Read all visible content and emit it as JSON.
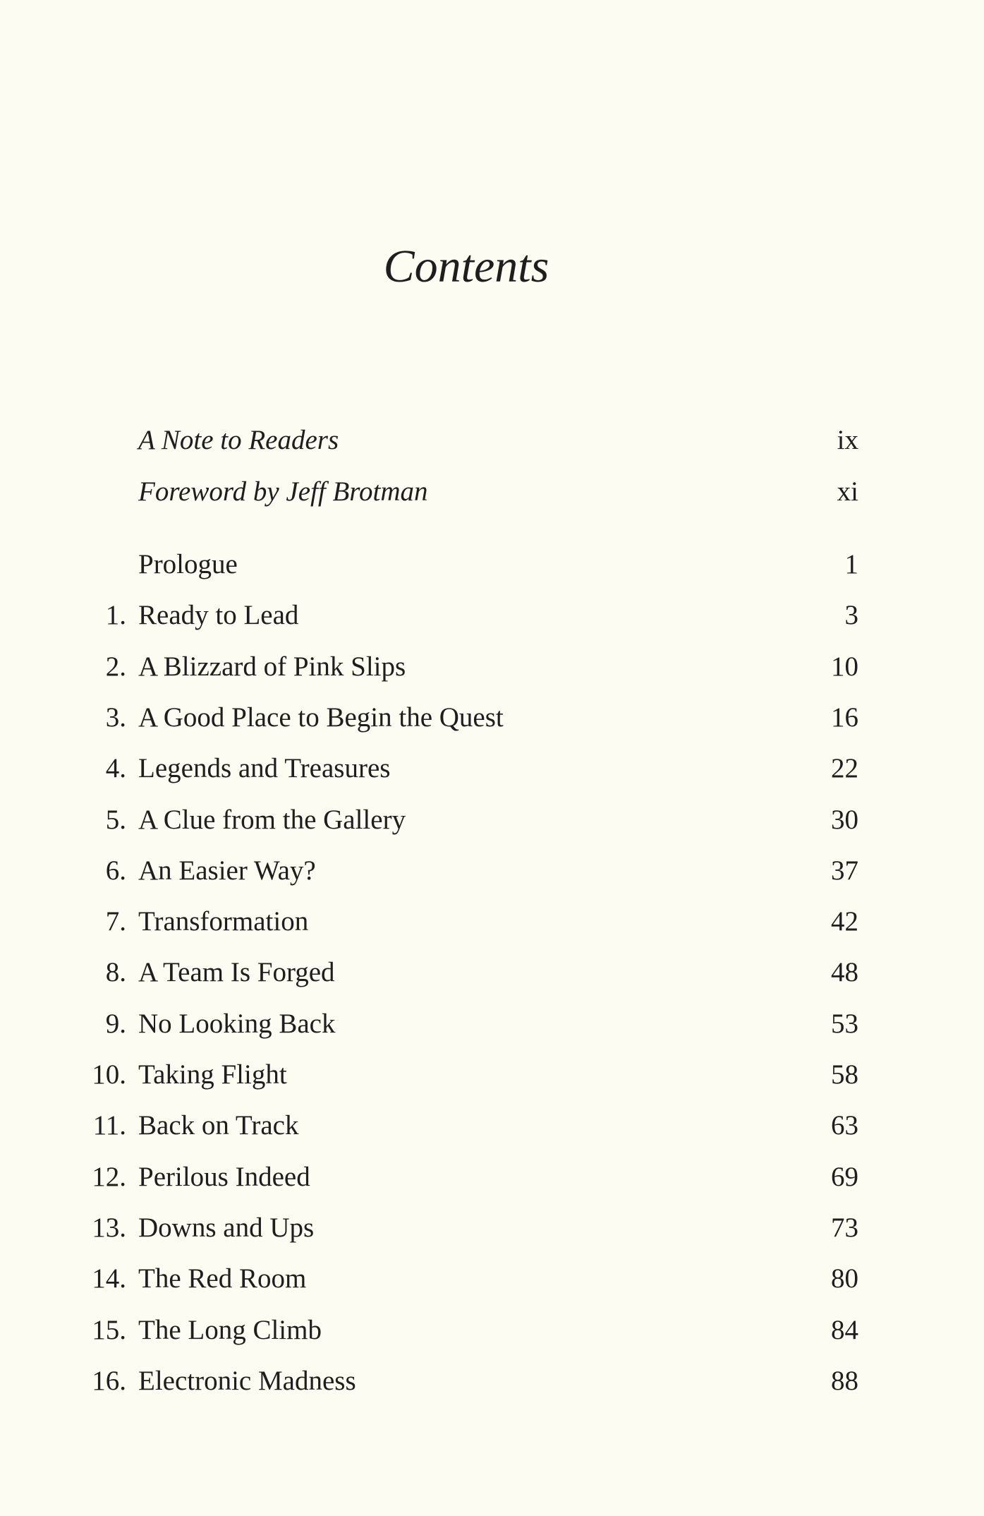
{
  "title": "Contents",
  "front_matter": [
    {
      "label": "A Note to Readers",
      "page": "ix"
    },
    {
      "label": "Foreword by Jeff Brotman",
      "page": "xi"
    }
  ],
  "entries": [
    {
      "number": "",
      "label": "Prologue",
      "page": "1"
    },
    {
      "number": "1.",
      "label": "Ready to Lead",
      "page": "3"
    },
    {
      "number": "2.",
      "label": "A Blizzard of Pink Slips",
      "page": "10"
    },
    {
      "number": "3.",
      "label": "A Good Place to Begin the Quest",
      "page": "16"
    },
    {
      "number": "4.",
      "label": "Legends and Treasures",
      "page": "22"
    },
    {
      "number": "5.",
      "label": "A Clue from the Gallery",
      "page": "30"
    },
    {
      "number": "6.",
      "label": "An Easier Way?",
      "page": "37"
    },
    {
      "number": "7.",
      "label": "Transformation",
      "page": "42"
    },
    {
      "number": "8.",
      "label": "A Team Is Forged",
      "page": "48"
    },
    {
      "number": "9.",
      "label": "No Looking Back",
      "page": "53"
    },
    {
      "number": "10.",
      "label": "Taking Flight",
      "page": "58"
    },
    {
      "number": "11.",
      "label": "Back on Track",
      "page": "63"
    },
    {
      "number": "12.",
      "label": "Perilous Indeed",
      "page": "69"
    },
    {
      "number": "13.",
      "label": "Downs and Ups",
      "page": "73"
    },
    {
      "number": "14.",
      "label": "The Red Room",
      "page": "80"
    },
    {
      "number": "15.",
      "label": "The Long Climb",
      "page": "84"
    },
    {
      "number": "16.",
      "label": "Electronic Madness",
      "page": "88"
    }
  ]
}
